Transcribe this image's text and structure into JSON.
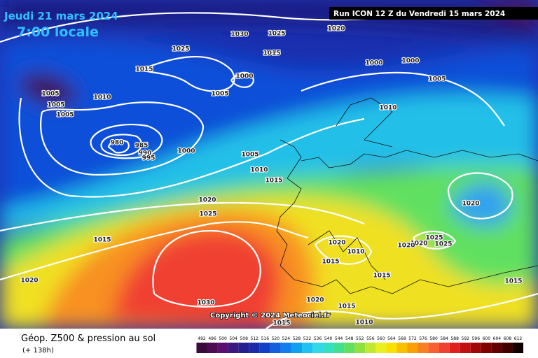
{
  "header": {
    "date": "Jeudi 21 mars 2024",
    "time": "7:00 locale",
    "run": "Run ICON 12 Z du Vendredi 15 mars 2024"
  },
  "copyright": "Copyright © 2024 Meteociel.fr",
  "footer": {
    "title": "Géop. Z500 & pression au sol",
    "lead": "(+ 138h)"
  },
  "isobar_labels": [
    "1030",
    "1025",
    "1020",
    "1025",
    "1015",
    "1015",
    "1000",
    "1005",
    "1000",
    "1000",
    "1005",
    "1010",
    "1005",
    "1005",
    "1005",
    "1010",
    "980",
    "985",
    "990",
    "995",
    "1000",
    "1005",
    "1010",
    "1015",
    "1020",
    "1025",
    "1015",
    "1020",
    "1020",
    "1020",
    "1010",
    "1015",
    "1020",
    "1020",
    "1025",
    "1025",
    "1015",
    "1015",
    "1030",
    "1020",
    "1015",
    "1010",
    "1015"
  ],
  "colorbar": {
    "ticks": [
      492,
      496,
      500,
      504,
      508,
      512,
      516,
      520,
      524,
      528,
      532,
      536,
      540,
      544,
      548,
      552,
      556,
      560,
      564,
      568,
      572,
      576,
      580,
      584,
      588,
      592,
      596,
      600,
      604,
      608,
      612
    ],
    "colors": [
      "#3a0a3a",
      "#500a50",
      "#5a1070",
      "#3a1a80",
      "#202090",
      "#1a2aa8",
      "#1040c8",
      "#1060e0",
      "#1080f0",
      "#10a0f0",
      "#20c0f0",
      "#30d8e8",
      "#30e0c0",
      "#40e090",
      "#60e060",
      "#90e040",
      "#c0e830",
      "#e8f020",
      "#f8e000",
      "#f8c000",
      "#f8a000",
      "#f88020",
      "#f86030",
      "#f04030",
      "#e02020",
      "#c01010",
      "#a00808",
      "#800000",
      "#600000",
      "#400000",
      "#100000"
    ]
  }
}
